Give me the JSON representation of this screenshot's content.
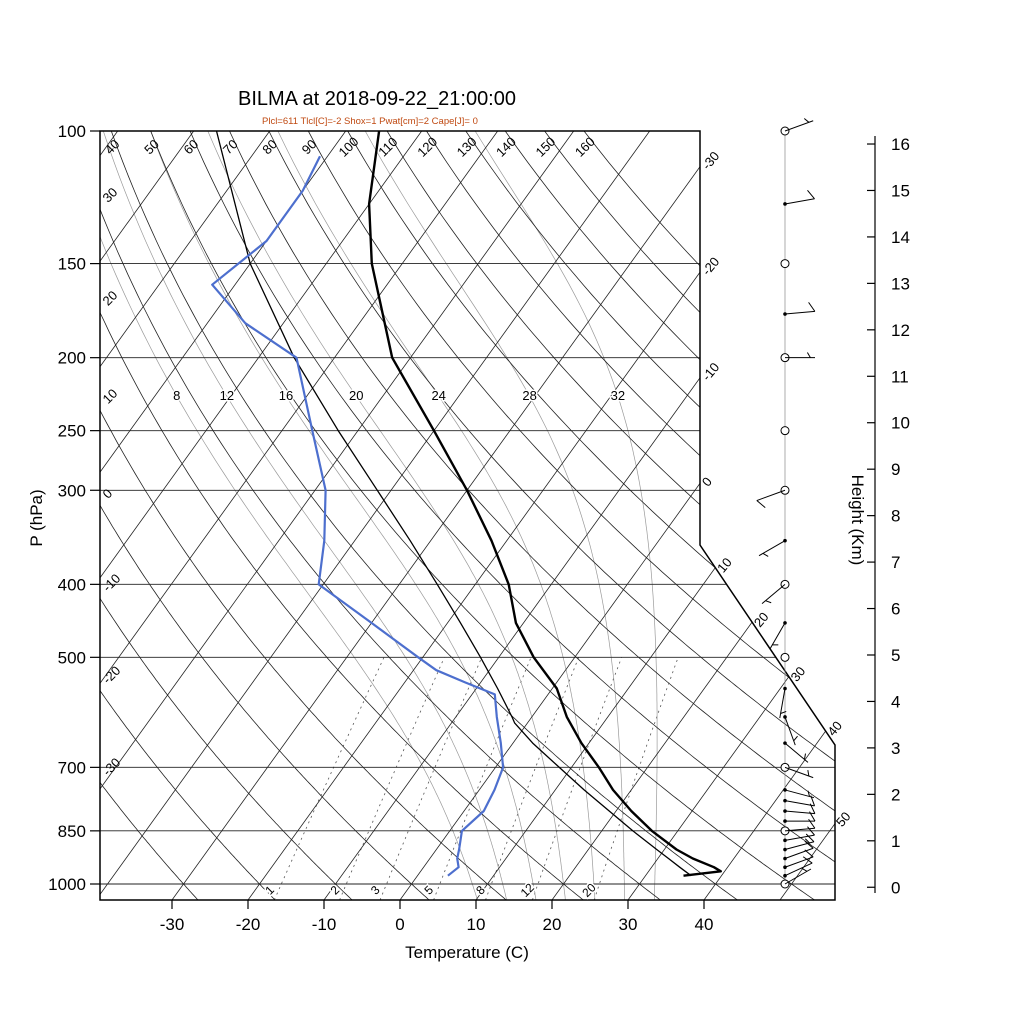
{
  "title": "BILMA at 2018-09-22_21:00:00",
  "params_line": "Plcl=611 Tlcl[C]=-2 Shox=1 Pwat[cm]=2 Cape[J]= 0",
  "axes": {
    "pressure_label": "P (hPa)",
    "temperature_label": "Temperature (C)",
    "height_label": "Height (Km)",
    "pressure_ticks": [
      100,
      150,
      200,
      250,
      300,
      400,
      500,
      700,
      850,
      1000
    ],
    "temperature_ticks": [
      -30,
      -20,
      -10,
      0,
      10,
      20,
      30,
      40
    ],
    "height_ticks_km": [
      0,
      1,
      2,
      3,
      4,
      5,
      6,
      7,
      8,
      9,
      10,
      11,
      12,
      13,
      14,
      15,
      16
    ]
  },
  "chart_data": {
    "type": "skewt",
    "station": "BILMA",
    "datetime": "2018-09-22_21:00:00",
    "indices": {
      "Plcl_hPa": 611,
      "Tlcl_C": -2,
      "Showalter": 1,
      "Pwat_cm": 2,
      "Cape_J": 0
    },
    "grid": {
      "isotherms_C": {
        "start": -110,
        "end": 50,
        "step": 10
      },
      "dry_adiabats_C": {
        "start": -30,
        "end": 160,
        "step": 10
      },
      "moist_adiabats_C": [
        8,
        12,
        16,
        20,
        24,
        28,
        32
      ],
      "mixing_ratio_g_kg": [
        1,
        2,
        3,
        5,
        8,
        12,
        20
      ]
    },
    "colors": {
      "temperature": "#000000",
      "dewpoint": "#4d6fce",
      "parcel": "#000000",
      "params_text": "#c04a12"
    },
    "series": {
      "temperature": {
        "color": "#000000",
        "points": [
          [
            975,
            35
          ],
          [
            962,
            39.5
          ],
          [
            950,
            38.2
          ],
          [
            925,
            34.6
          ],
          [
            900,
            31.6
          ],
          [
            850,
            26.6
          ],
          [
            800,
            22.0
          ],
          [
            750,
            17.6
          ],
          [
            700,
            13.6
          ],
          [
            650,
            9.0
          ],
          [
            600,
            4.6
          ],
          [
            550,
            0.6
          ],
          [
            500,
            -5.4
          ],
          [
            450,
            -11.0
          ],
          [
            400,
            -15.6
          ],
          [
            350,
            -22.0
          ],
          [
            300,
            -30.0
          ],
          [
            250,
            -40.0
          ],
          [
            200,
            -52.4
          ],
          [
            150,
            -64.0
          ],
          [
            125,
            -70.0
          ],
          [
            100,
            -75.6
          ]
        ]
      },
      "dewpoint": {
        "color": "#4d6fce",
        "points": [
          [
            975,
            4.0
          ],
          [
            950,
            4.6
          ],
          [
            925,
            3.6
          ],
          [
            900,
            3.0
          ],
          [
            850,
            1.6
          ],
          [
            800,
            2.6
          ],
          [
            750,
            2.0
          ],
          [
            700,
            1.0
          ],
          [
            650,
            -1.6
          ],
          [
            600,
            -4.6
          ],
          [
            560,
            -7.0
          ],
          [
            540,
            -12.0
          ],
          [
            520,
            -17.0
          ],
          [
            500,
            -20.6
          ],
          [
            450,
            -30.0
          ],
          [
            400,
            -40.6
          ],
          [
            350,
            -44.0
          ],
          [
            300,
            -48.6
          ],
          [
            250,
            -56.0
          ],
          [
            200,
            -65.0
          ],
          [
            180,
            -75.0
          ],
          [
            160,
            -83.0
          ],
          [
            140,
            -80.0
          ],
          [
            120,
            -80.0
          ],
          [
            108,
            -81.0
          ]
        ]
      },
      "parcel": {
        "color": "#000000",
        "points": [
          [
            975,
            36.0
          ],
          [
            950,
            33.7
          ],
          [
            925,
            31.4
          ],
          [
            900,
            29.0
          ],
          [
            850,
            24.1
          ],
          [
            800,
            19.1
          ],
          [
            750,
            13.8
          ],
          [
            700,
            8.4
          ],
          [
            650,
            2.6
          ],
          [
            611,
            -1.7
          ],
          [
            600,
            -2.6
          ],
          [
            550,
            -7.2
          ],
          [
            500,
            -12.4
          ],
          [
            450,
            -18.3
          ],
          [
            400,
            -25.0
          ],
          [
            350,
            -32.7
          ],
          [
            300,
            -41.8
          ],
          [
            250,
            -52.6
          ],
          [
            200,
            -65.3
          ],
          [
            150,
            -80.0
          ],
          [
            100,
            -97.0
          ]
        ]
      }
    },
    "winds_kt": [
      {
        "p": 1000,
        "spd": 5,
        "dir": 60,
        "ring": true
      },
      {
        "p": 975,
        "spd": 8,
        "dir": 65,
        "ring": false
      },
      {
        "p": 950,
        "spd": 10,
        "dir": 70,
        "ring": false
      },
      {
        "p": 925,
        "spd": 12,
        "dir": 70,
        "ring": false
      },
      {
        "p": 900,
        "spd": 15,
        "dir": 75,
        "ring": false
      },
      {
        "p": 875,
        "spd": 12,
        "dir": 80,
        "ring": false
      },
      {
        "p": 850,
        "spd": 10,
        "dir": 85,
        "ring": true
      },
      {
        "p": 825,
        "spd": 10,
        "dir": 90,
        "ring": false
      },
      {
        "p": 800,
        "spd": 8,
        "dir": 95,
        "ring": false
      },
      {
        "p": 775,
        "spd": 8,
        "dir": 100,
        "ring": false
      },
      {
        "p": 750,
        "spd": 5,
        "dir": 105,
        "ring": false
      },
      {
        "p": 700,
        "spd": 5,
        "dir": 110,
        "ring": true
      },
      {
        "p": 650,
        "spd": 5,
        "dir": 130,
        "ring": false
      },
      {
        "p": 600,
        "spd": 3,
        "dir": 160,
        "ring": false
      },
      {
        "p": 550,
        "spd": 5,
        "dir": 190,
        "ring": false
      },
      {
        "p": 500,
        "spd": 0,
        "dir": 0,
        "ring": true
      },
      {
        "p": 450,
        "spd": 3,
        "dir": 210,
        "ring": false
      },
      {
        "p": 400,
        "spd": 5,
        "dir": 230,
        "ring": true
      },
      {
        "p": 350,
        "spd": 5,
        "dir": 240,
        "ring": false
      },
      {
        "p": 300,
        "spd": 8,
        "dir": 250,
        "ring": true
      },
      {
        "p": 250,
        "spd": 0,
        "dir": 0,
        "ring": true
      },
      {
        "p": 200,
        "spd": 5,
        "dir": 90,
        "ring": true
      },
      {
        "p": 175,
        "spd": 8,
        "dir": 85,
        "ring": false
      },
      {
        "p": 150,
        "spd": 0,
        "dir": 0,
        "ring": true
      },
      {
        "p": 125,
        "spd": 10,
        "dir": 80,
        "ring": false
      },
      {
        "p": 100,
        "spd": 3,
        "dir": 70,
        "ring": true
      }
    ]
  }
}
